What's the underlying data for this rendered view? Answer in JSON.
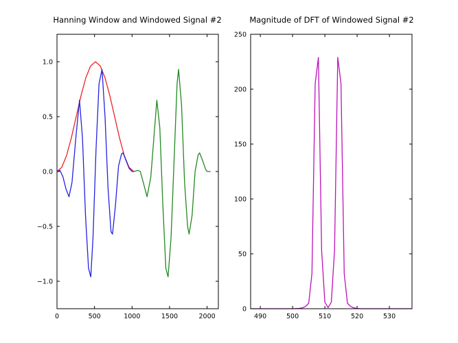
{
  "chart_data": [
    {
      "type": "line",
      "title": "Hanning Window and Windowed Signal #2",
      "xlabel": "",
      "ylabel": "",
      "xlim": [
        0,
        2150
      ],
      "ylim": [
        -1.25,
        1.25
      ],
      "xticks": [
        0,
        500,
        1000,
        1500,
        2000
      ],
      "yticks": [
        -1.0,
        -0.5,
        0.0,
        0.5,
        1.0
      ],
      "xtick_labels": [
        "0",
        "500",
        "1000",
        "1500",
        "2000"
      ],
      "ytick_labels": [
        "−1.0",
        "−0.5",
        "0.0",
        "0.5",
        "1.0"
      ],
      "grid": false,
      "series": [
        {
          "color": "#ee2222",
          "description": "Hanning window",
          "x": [
            0,
            64,
            128,
            192,
            256,
            320,
            384,
            448,
            512,
            576,
            640,
            704,
            768,
            832,
            896,
            960,
            1024
          ],
          "y": [
            0.0,
            0.038,
            0.146,
            0.309,
            0.5,
            0.691,
            0.854,
            0.962,
            1.0,
            0.962,
            0.854,
            0.691,
            0.5,
            0.309,
            0.146,
            0.038,
            0.0
          ]
        },
        {
          "color": "#2222dd",
          "description": "windowed signal",
          "x": [
            0,
            40,
            80,
            120,
            160,
            200,
            250,
            300,
            340,
            380,
            420,
            450,
            480,
            520,
            560,
            600,
            640,
            680,
            720,
            740,
            780,
            820,
            860,
            880,
            920,
            960,
            1000,
            1024
          ],
          "y": [
            0.0,
            0.01,
            -0.05,
            -0.16,
            -0.23,
            -0.1,
            0.3,
            0.65,
            0.3,
            -0.4,
            -0.88,
            -0.96,
            -0.6,
            0.2,
            0.8,
            0.93,
            0.5,
            -0.15,
            -0.55,
            -0.57,
            -0.3,
            0.05,
            0.16,
            0.17,
            0.1,
            0.03,
            0.0,
            0.0
          ]
        },
        {
          "color": "#228822",
          "description": "windowed signal, second segment",
          "x": [
            1024,
            1080,
            1110,
            1150,
            1200,
            1250,
            1290,
            1330,
            1370,
            1410,
            1450,
            1480,
            1520,
            1560,
            1600,
            1620,
            1660,
            1700,
            1740,
            1760,
            1800,
            1840,
            1880,
            1900,
            1940,
            1980,
            2000,
            2048
          ],
          "y": [
            0.0,
            0.01,
            0.0,
            -0.1,
            -0.23,
            -0.05,
            0.3,
            0.65,
            0.4,
            -0.3,
            -0.88,
            -0.96,
            -0.6,
            0.1,
            0.8,
            0.93,
            0.6,
            -0.1,
            -0.5,
            -0.57,
            -0.4,
            0.0,
            0.15,
            0.17,
            0.1,
            0.02,
            0.0,
            0.0
          ]
        }
      ]
    },
    {
      "type": "line",
      "title": "Magnitude of DFT of Windowed Signal #2",
      "xlabel": "",
      "ylabel": "",
      "xlim": [
        487,
        537
      ],
      "ylim": [
        0,
        250
      ],
      "xticks": [
        490,
        500,
        510,
        520,
        530
      ],
      "yticks": [
        0,
        50,
        100,
        150,
        200,
        250
      ],
      "xtick_labels": [
        "490",
        "500",
        "510",
        "520",
        "530"
      ],
      "ytick_labels": [
        "0",
        "50",
        "100",
        "150",
        "200",
        "250"
      ],
      "grid": false,
      "series": [
        {
          "color": "#bb11bb",
          "x": [
            487,
            500,
            502,
            503,
            504,
            505,
            506,
            507,
            508,
            509,
            510,
            511,
            512,
            513,
            514,
            515,
            516,
            517,
            518,
            519,
            520,
            521,
            537
          ],
          "y": [
            0,
            0,
            0.3,
            0.8,
            2,
            5,
            32,
            205,
            229,
            53,
            6,
            1,
            6,
            53,
            229,
            205,
            32,
            5,
            2,
            0.8,
            0.3,
            0,
            0
          ]
        }
      ]
    }
  ]
}
